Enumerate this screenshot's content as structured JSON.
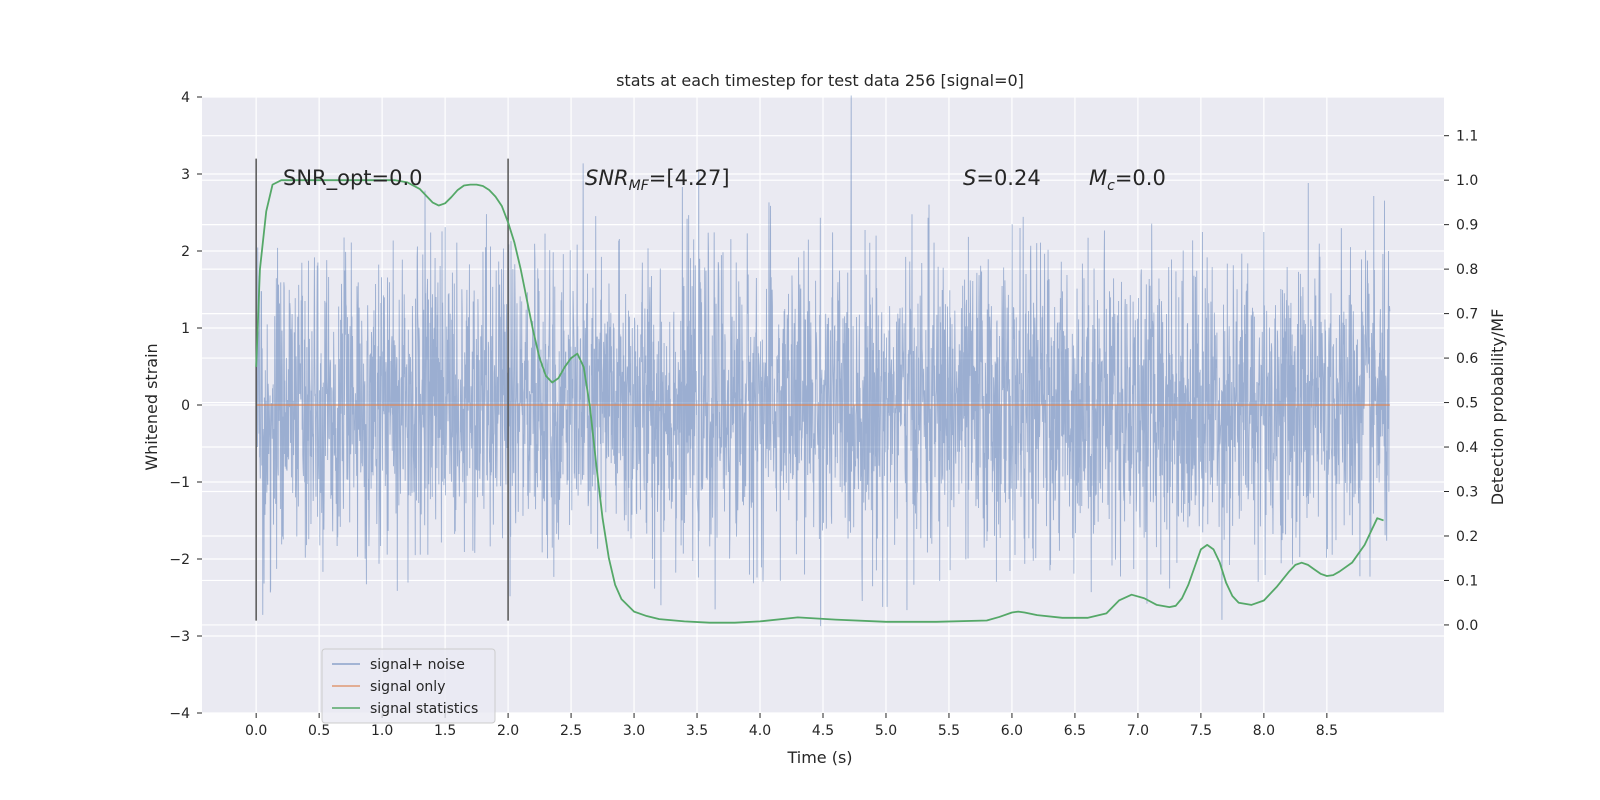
{
  "chart_data": {
    "type": "line",
    "title": "stats at each timestep for test data 256 [signal=0]",
    "xlabel": "Time (s)",
    "ylabel": "Whitened strain",
    "ylabel_right": "Detection probability/MF",
    "xlim": [
      -0.43,
      9.43
    ],
    "ylim": [
      -4.0,
      4.0
    ],
    "ylim_right": [
      -0.198,
      1.187
    ],
    "x_ticks": [
      "0.0",
      "0.5",
      "1.0",
      "1.5",
      "2.0",
      "2.5",
      "3.0",
      "3.5",
      "4.0",
      "4.5",
      "5.0",
      "5.5",
      "6.0",
      "6.5",
      "7.0",
      "7.5",
      "8.0",
      "8.5"
    ],
    "y_ticks": [
      "4",
      "3",
      "2",
      "1",
      "0",
      "−1",
      "−2",
      "−3",
      "−4"
    ],
    "y_right_ticks": [
      "1.1",
      "1.0",
      "0.9",
      "0.8",
      "0.7",
      "0.6",
      "0.5",
      "0.4",
      "0.3",
      "0.2",
      "0.1",
      "0.0"
    ],
    "grid": true,
    "legend_position": "lower-left",
    "colors": {
      "background": "#eaeaf2",
      "grid": "#ffffff",
      "noise": "#4c72b0",
      "signal": "#dd8452",
      "stats": "#55a868",
      "window": "#555555"
    },
    "window": {
      "x": [
        0.0,
        2.0
      ],
      "y": [
        -2.8,
        3.2
      ]
    },
    "annotations": {
      "snr_opt": "SNR_opt=0.0",
      "snr_mf_prefix": "SNR",
      "snr_mf_sub": "MF",
      "snr_mf_value": "=[4.27]",
      "s_symbol": "S",
      "s_value": "=0.24",
      "mc_symbol": "M",
      "mc_sub": "c",
      "mc_value": "=0.0"
    },
    "series": [
      {
        "name": "signal+ noise",
        "axis": "left",
        "x_range": [
          0.0,
          9.0
        ],
        "envelope": {
          "typical_abs": 1.4,
          "max": 4.02,
          "min": -3.63
        }
      },
      {
        "name": "signal only",
        "axis": "left",
        "x": [
          0.0,
          9.0
        ],
        "y": [
          0.0,
          0.0
        ]
      },
      {
        "name": "signal statistics",
        "axis": "right",
        "x": [
          0.0,
          0.03,
          0.08,
          0.13,
          0.2,
          0.3,
          0.5,
          0.7,
          0.9,
          1.1,
          1.2,
          1.3,
          1.35,
          1.4,
          1.45,
          1.5,
          1.55,
          1.6,
          1.65,
          1.7,
          1.75,
          1.8,
          1.85,
          1.9,
          1.95,
          2.0,
          2.05,
          2.1,
          2.15,
          2.2,
          2.25,
          2.3,
          2.35,
          2.4,
          2.45,
          2.5,
          2.55,
          2.6,
          2.65,
          2.7,
          2.75,
          2.8,
          2.85,
          2.9,
          3.0,
          3.1,
          3.2,
          3.4,
          3.6,
          3.8,
          4.0,
          4.3,
          4.6,
          5.0,
          5.4,
          5.8,
          5.9,
          6.0,
          6.05,
          6.1,
          6.2,
          6.4,
          6.6,
          6.75,
          6.85,
          6.95,
          7.05,
          7.15,
          7.25,
          7.3,
          7.35,
          7.4,
          7.45,
          7.5,
          7.55,
          7.6,
          7.65,
          7.7,
          7.75,
          7.8,
          7.9,
          8.0,
          8.1,
          8.2,
          8.25,
          8.3,
          8.35,
          8.4,
          8.45,
          8.5,
          8.55,
          8.6,
          8.7,
          8.8,
          8.85,
          8.9,
          8.95
        ],
        "y": [
          0.58,
          0.8,
          0.93,
          0.99,
          1.0,
          1.0,
          1.0,
          1.0,
          1.0,
          1.0,
          0.995,
          0.98,
          0.965,
          0.95,
          0.943,
          0.948,
          0.962,
          0.978,
          0.988,
          0.99,
          0.99,
          0.987,
          0.978,
          0.963,
          0.942,
          0.905,
          0.86,
          0.8,
          0.73,
          0.66,
          0.6,
          0.56,
          0.545,
          0.555,
          0.58,
          0.6,
          0.61,
          0.58,
          0.49,
          0.36,
          0.24,
          0.15,
          0.09,
          0.058,
          0.03,
          0.02,
          0.013,
          0.008,
          0.005,
          0.005,
          0.008,
          0.017,
          0.012,
          0.007,
          0.007,
          0.01,
          0.018,
          0.028,
          0.03,
          0.028,
          0.022,
          0.016,
          0.016,
          0.026,
          0.055,
          0.068,
          0.06,
          0.045,
          0.04,
          0.043,
          0.06,
          0.09,
          0.13,
          0.17,
          0.18,
          0.17,
          0.14,
          0.095,
          0.065,
          0.05,
          0.045,
          0.055,
          0.085,
          0.12,
          0.135,
          0.14,
          0.135,
          0.125,
          0.115,
          0.11,
          0.112,
          0.12,
          0.14,
          0.18,
          0.21,
          0.24,
          0.235
        ]
      }
    ]
  }
}
